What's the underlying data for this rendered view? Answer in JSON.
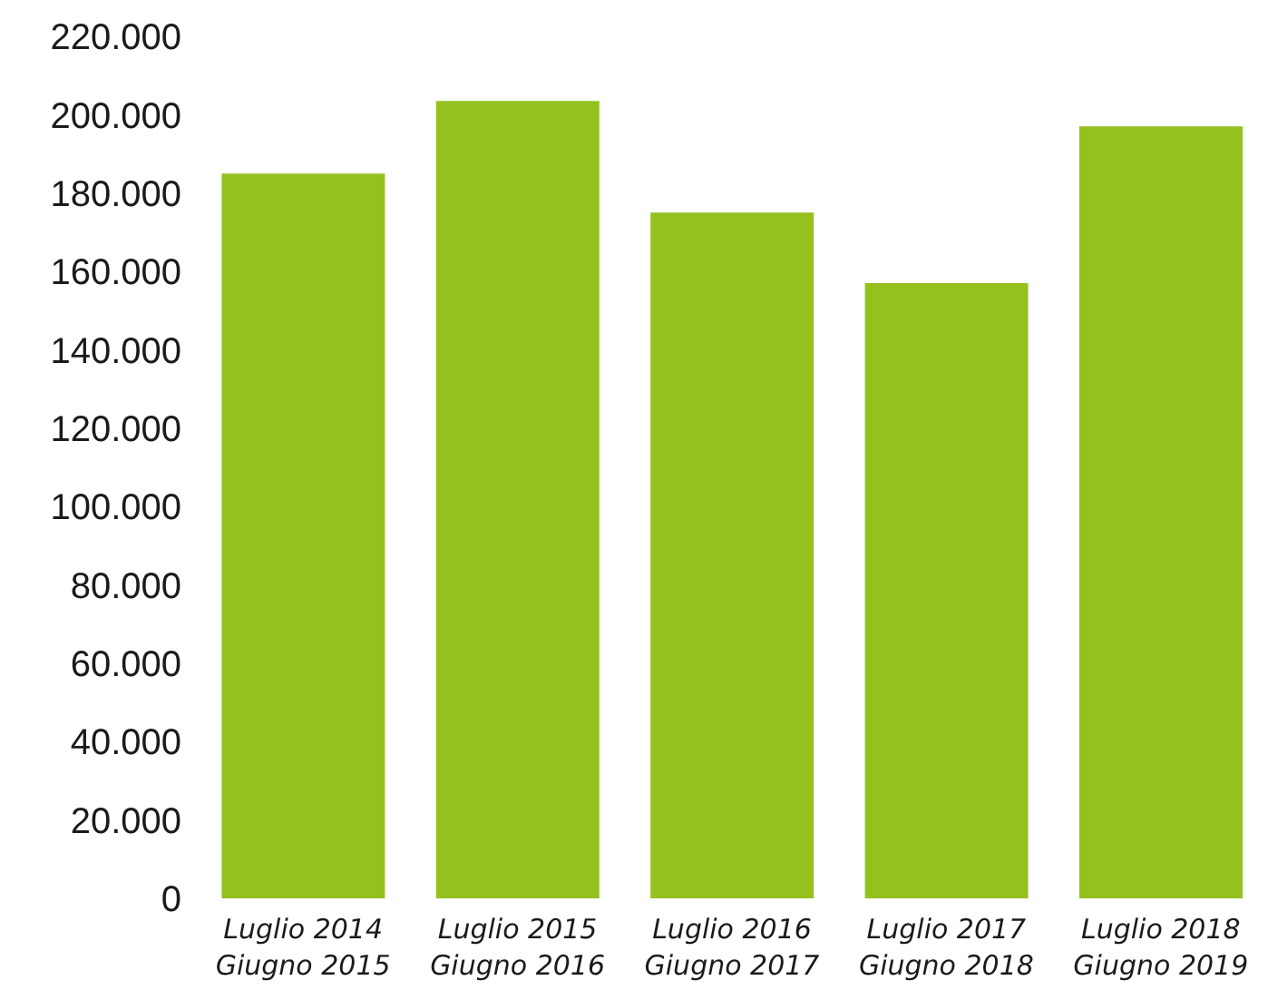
{
  "chart_data": {
    "type": "bar",
    "categories": [
      "Luglio 2014\nGiugno 2015",
      "Luglio 2015\nGiugno 2016",
      "Luglio 2016\nGiugno 2017",
      "Luglio 2017\nGiugno 2018",
      "Luglio 2018\nGiugno 2019"
    ],
    "values": [
      185000,
      203500,
      175000,
      157000,
      197000
    ],
    "color": "#95c11f",
    "ylim": [
      0,
      220000
    ],
    "yticks": [
      0,
      {
        "value": 20000,
        "label": "20.000"
      },
      {
        "value": 40000,
        "label": "40.000"
      },
      {
        "value": 60000,
        "label": "60.000"
      },
      {
        "value": 80000,
        "label": "80.000"
      },
      {
        "value": 100000,
        "label": "100.000"
      },
      {
        "value": 120000,
        "label": "120.000"
      },
      {
        "value": 140000,
        "label": "140.000"
      },
      {
        "value": 160000,
        "label": "160.000"
      },
      {
        "value": 180000,
        "label": "180.000"
      },
      {
        "value": 200000,
        "label": "200.000"
      },
      {
        "value": 220000,
        "label": "220.000"
      }
    ],
    "grid": false
  }
}
